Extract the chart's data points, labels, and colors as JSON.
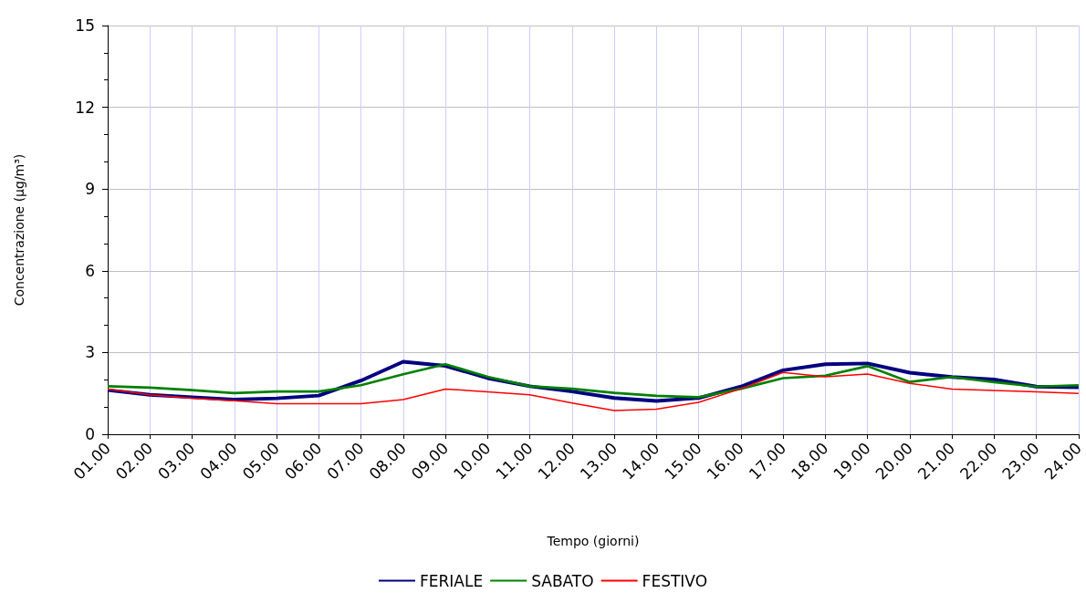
{
  "chart_data": {
    "type": "line",
    "xlabel": "Tempo (giorni)",
    "ylabel": "Concentrazione (µg/m³)",
    "categories": [
      "01.00",
      "02.00",
      "03.00",
      "04.00",
      "05.00",
      "06.00",
      "07.00",
      "08.00",
      "09.00",
      "10.00",
      "11.00",
      "12.00",
      "13.00",
      "14.00",
      "15.00",
      "16.00",
      "17.00",
      "18.00",
      "19.00",
      "20.00",
      "21.00",
      "22.00",
      "23.00",
      "24.00"
    ],
    "series": [
      {
        "name": "FERIALE",
        "color": "#000080",
        "values": [
          1.62,
          1.45,
          1.36,
          1.27,
          1.32,
          1.42,
          1.97,
          2.66,
          2.51,
          2.06,
          1.76,
          1.57,
          1.33,
          1.22,
          1.33,
          1.75,
          2.35,
          2.57,
          2.6,
          2.26,
          2.1,
          2.01,
          1.75,
          1.72
        ]
      },
      {
        "name": "SABATO",
        "color": "#008000",
        "values": [
          1.76,
          1.71,
          1.62,
          1.51,
          1.57,
          1.57,
          1.8,
          2.2,
          2.57,
          2.11,
          1.76,
          1.67,
          1.52,
          1.41,
          1.36,
          1.67,
          2.06,
          2.15,
          2.5,
          1.92,
          2.1,
          1.91,
          1.75,
          1.8
        ]
      },
      {
        "name": "FESTIVO",
        "color": "#ff0000",
        "values": [
          1.66,
          1.45,
          1.32,
          1.23,
          1.12,
          1.12,
          1.12,
          1.27,
          1.66,
          1.56,
          1.45,
          1.15,
          0.87,
          0.92,
          1.17,
          1.67,
          2.27,
          2.11,
          2.21,
          1.87,
          1.66,
          1.61,
          1.56,
          1.5
        ]
      }
    ],
    "ylim": [
      0,
      15
    ],
    "yticks": [
      0,
      3,
      6,
      9,
      12,
      15
    ],
    "grid": true,
    "legend": "bottom",
    "marker": "none",
    "line_style": "solid"
  }
}
